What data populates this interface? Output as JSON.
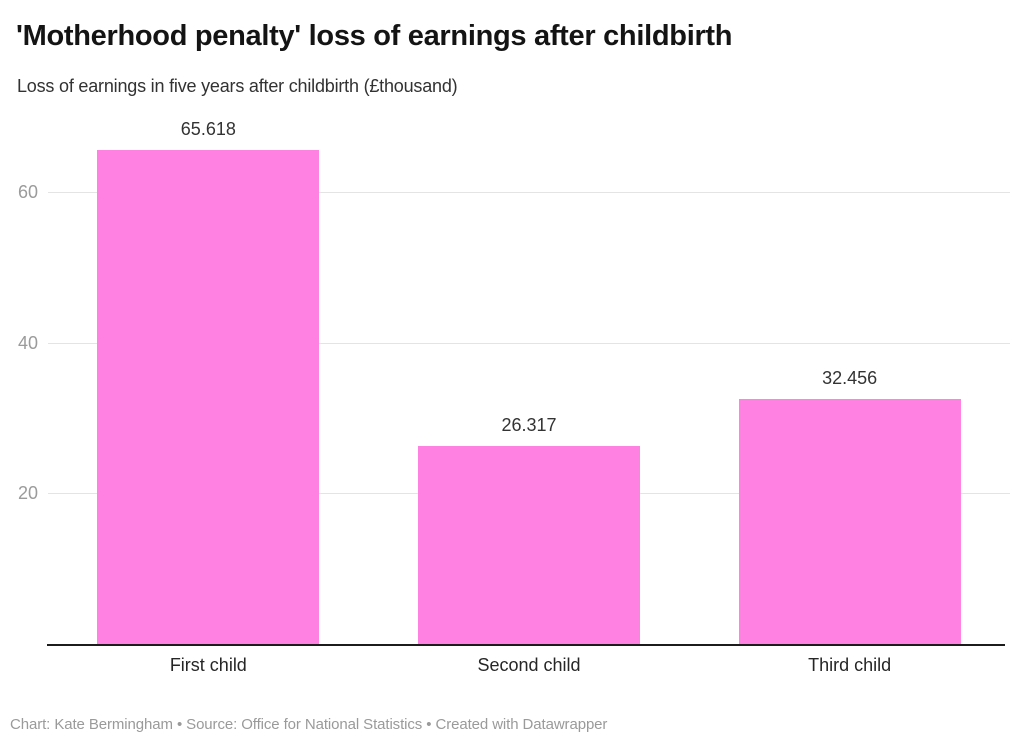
{
  "header": {
    "title": "'Motherhood penalty' loss of earnings after childbirth",
    "subtitle": "Loss of earnings in five years after childbirth (£thousand)"
  },
  "footer": {
    "text": "Chart: Kate Bermingham • Source: Office for National Statistics • Created with Datawrapper"
  },
  "chart_data": {
    "type": "bar",
    "title": "'Motherhood penalty' loss of earnings after childbirth",
    "subtitle": "Loss of earnings in five years after childbirth (£thousand)",
    "categories": [
      "First child",
      "Second child",
      "Third child"
    ],
    "values": [
      65.618,
      26.317,
      32.456
    ],
    "data_labels": [
      "65.618",
      "26.317",
      "32.456"
    ],
    "y_ticks": [
      20,
      40,
      60
    ],
    "ylim": [
      0,
      70
    ],
    "xlabel": "",
    "ylabel": "",
    "grid": true,
    "legend": "none",
    "bar_color": "#ff81e2",
    "gridline_color": "#e4e4e4",
    "axis_line_color": "#1c1c1c",
    "tick_label_color": "#9b9b9b",
    "value_label_color": "#333333",
    "category_label_color": "#262626",
    "footer_color": "#9a9a9a"
  }
}
